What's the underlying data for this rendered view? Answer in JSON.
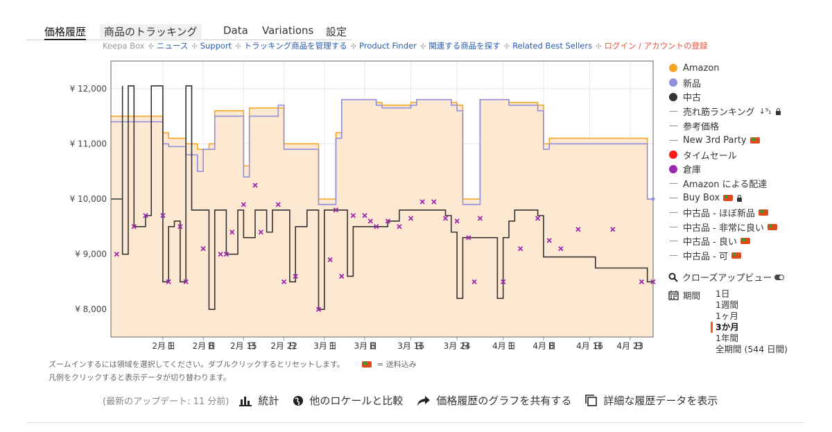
{
  "tabs": [
    "価格履歴",
    "商品のトラッキング",
    "Data",
    "Variations",
    "設定"
  ],
  "subnav": [
    {
      "label": "Keepa Box",
      "style": "grey"
    },
    {
      "label": "ニュース",
      "style": "lnk"
    },
    {
      "label": "Support",
      "style": "lnk"
    },
    {
      "label": "トラッキング商品を管理する",
      "style": "lnk"
    },
    {
      "label": "Product Finder",
      "style": "lnk"
    },
    {
      "label": "関連する商品を探す",
      "style": "lnk"
    },
    {
      "label": "Related Best Sellers",
      "style": "lnk"
    },
    {
      "label": "ログイン / アカウントの登録",
      "style": "red"
    }
  ],
  "subnav_sep": "✣",
  "legend": [
    {
      "label": "Amazon",
      "marker": "dot",
      "color": "#f5a623"
    },
    {
      "label": "新品",
      "marker": "dot",
      "color": "#8f8fdf"
    },
    {
      "label": "中古",
      "marker": "dot",
      "color": "#333333"
    },
    {
      "label": "売れ筋ランキング",
      "marker": "dash",
      "extra": "rank-lock"
    },
    {
      "label": "参考価格",
      "marker": "dash"
    },
    {
      "label": "New 3rd Party",
      "marker": "dash",
      "extra": "truck"
    },
    {
      "label": "タイムセール",
      "marker": "dot",
      "color": "#ff1a1a"
    },
    {
      "label": "倉庫",
      "marker": "dot",
      "color": "#9c27b0"
    },
    {
      "label": "Amazon による配達",
      "marker": "dash"
    },
    {
      "label": "Buy Box",
      "marker": "dash",
      "extra": "truck-lock"
    },
    {
      "label": "中古品 - ほぼ新品",
      "marker": "dash",
      "extra": "truck"
    },
    {
      "label": "中古品 - 非常に良い",
      "marker": "dash",
      "extra": "truck"
    },
    {
      "label": "中古品 - 良い",
      "marker": "dash",
      "extra": "truck"
    },
    {
      "label": "中古品 - 可",
      "marker": "dash",
      "extra": "truck"
    }
  ],
  "zoom_label": "クローズアップビュー",
  "period": {
    "label": "期間",
    "options": [
      "1日",
      "1週間",
      "1ヶ月",
      "3か月",
      "1年間",
      "全期間 (544 日間)"
    ],
    "selected": 3
  },
  "notes": {
    "line1": "ズームインするには領域を選択してください。ダブルクリックするとリセットします。",
    "shipping": "= 送料込み",
    "line2": "凡例をクリックすると表示データが切り替わります。"
  },
  "bottom": {
    "updated": "(最新のアップデート: 11 分前)",
    "stats": "統計",
    "compare": "他のロケールと比較",
    "share": "価格履歴のグラフを共有する",
    "detail": "詳細な履歴データを表示"
  },
  "chart_data": {
    "type": "line",
    "x_range": [
      "2025-01-23",
      "2025-04-27"
    ],
    "ylim": [
      7500,
      12500
    ],
    "y_ticks": [
      8000,
      9000,
      10000,
      11000,
      12000
    ],
    "y_tick_labels": [
      "¥ 8,000",
      "¥ 9,000",
      "¥ 10,000",
      "¥ 11,000",
      "¥ 12,000"
    ],
    "x_ticks": [
      {
        "label": "2月 1日",
        "date": "2025-02-01"
      },
      {
        "label": "2月 8日",
        "date": "2025-02-08"
      },
      {
        "label": "2月 15日",
        "date": "2025-02-15"
      },
      {
        "label": "2月 22日",
        "date": "2025-02-22"
      },
      {
        "label": "3月 1日",
        "date": "2025-03-01"
      },
      {
        "label": "3月 8日",
        "date": "2025-03-08"
      },
      {
        "label": "3月 16日",
        "date": "2025-03-16"
      },
      {
        "label": "3月 24日",
        "date": "2025-03-24"
      },
      {
        "label": "4月 1日",
        "date": "2025-04-01"
      },
      {
        "label": "4月 8日",
        "date": "2025-04-08"
      },
      {
        "label": "4月 16日",
        "date": "2025-04-16"
      },
      {
        "label": "4月 23日",
        "date": "2025-04-23"
      }
    ],
    "series": [
      {
        "name": "Amazon",
        "color": "#f5a623",
        "style": "step-area",
        "points": [
          [
            "2025-01-23",
            11500
          ],
          [
            "2025-01-31",
            11500
          ],
          [
            "2025-02-01",
            11200
          ],
          [
            "2025-02-02",
            11100
          ],
          [
            "2025-02-05",
            11000
          ],
          [
            "2025-02-07",
            10900
          ],
          [
            "2025-02-09",
            11000
          ],
          [
            "2025-02-10",
            11600
          ],
          [
            "2025-02-14",
            11600
          ],
          [
            "2025-02-15",
            10600
          ],
          [
            "2025-02-16",
            11650
          ],
          [
            "2025-02-22",
            11000
          ],
          [
            "2025-02-28",
            11000
          ],
          [
            "2025-02-28",
            10000
          ],
          [
            "2025-03-02",
            10000
          ],
          [
            "2025-03-03",
            11200
          ],
          [
            "2025-03-04",
            11800
          ],
          [
            "2025-03-09",
            11800
          ],
          [
            "2025-03-10",
            11750
          ],
          [
            "2025-03-11",
            11700
          ],
          [
            "2025-03-16",
            11750
          ],
          [
            "2025-03-17",
            11800
          ],
          [
            "2025-03-23",
            11750
          ],
          [
            "2025-03-24",
            11700
          ],
          [
            "2025-03-25",
            10000
          ],
          [
            "2025-03-27",
            10000
          ],
          [
            "2025-03-28",
            11800
          ],
          [
            "2025-04-01",
            11800
          ],
          [
            "2025-04-02",
            11750
          ],
          [
            "2025-04-07",
            11700
          ],
          [
            "2025-04-08",
            11000
          ],
          [
            "2025-04-09",
            11100
          ],
          [
            "2025-04-26",
            11100
          ],
          [
            "2025-04-26",
            10000
          ],
          [
            "2025-04-27",
            10000
          ]
        ]
      },
      {
        "name": "新品",
        "color": "#8f8fdf",
        "style": "step",
        "points": [
          [
            "2025-01-23",
            11400
          ],
          [
            "2025-01-31",
            11400
          ],
          [
            "2025-02-01",
            11000
          ],
          [
            "2025-02-02",
            10950
          ],
          [
            "2025-02-05",
            10800
          ],
          [
            "2025-02-07",
            10500
          ],
          [
            "2025-02-08",
            10900
          ],
          [
            "2025-02-10",
            11500
          ],
          [
            "2025-02-14",
            11500
          ],
          [
            "2025-02-15",
            10400
          ],
          [
            "2025-02-16",
            11500
          ],
          [
            "2025-02-21",
            11700
          ],
          [
            "2025-02-22",
            10900
          ],
          [
            "2025-02-28",
            10900
          ],
          [
            "2025-02-28",
            9900
          ],
          [
            "2025-03-02",
            9900
          ],
          [
            "2025-03-03",
            11100
          ],
          [
            "2025-03-04",
            11800
          ],
          [
            "2025-03-09",
            11800
          ],
          [
            "2025-03-10",
            11700
          ],
          [
            "2025-03-11",
            11650
          ],
          [
            "2025-03-16",
            11700
          ],
          [
            "2025-03-17",
            11800
          ],
          [
            "2025-03-23",
            11700
          ],
          [
            "2025-03-24",
            11600
          ],
          [
            "2025-03-25",
            9900
          ],
          [
            "2025-03-27",
            9900
          ],
          [
            "2025-03-28",
            11800
          ],
          [
            "2025-04-01",
            11800
          ],
          [
            "2025-04-02",
            11700
          ],
          [
            "2025-04-07",
            11600
          ],
          [
            "2025-04-08",
            10900
          ],
          [
            "2025-04-09",
            11000
          ],
          [
            "2025-04-26",
            11000
          ],
          [
            "2025-04-26",
            10000
          ],
          [
            "2025-04-27",
            10000
          ]
        ]
      },
      {
        "name": "中古",
        "color": "#333333",
        "style": "step",
        "points": [
          [
            "2025-01-23",
            10000
          ],
          [
            "2025-01-24",
            10000
          ],
          [
            "2025-01-25",
            12050
          ],
          [
            "2025-01-25",
            9000
          ],
          [
            "2025-01-26",
            12050
          ],
          [
            "2025-01-27",
            9500
          ],
          [
            "2025-01-28",
            9500
          ],
          [
            "2025-01-29",
            9700
          ],
          [
            "2025-01-30",
            12050
          ],
          [
            "2025-02-01",
            12050
          ],
          [
            "2025-02-01",
            8500
          ],
          [
            "2025-02-02",
            9500
          ],
          [
            "2025-02-03",
            9600
          ],
          [
            "2025-02-04",
            8500
          ],
          [
            "2025-02-05",
            12050
          ],
          [
            "2025-02-06",
            9800
          ],
          [
            "2025-02-08",
            9800
          ],
          [
            "2025-02-09",
            8000
          ],
          [
            "2025-02-10",
            9800
          ],
          [
            "2025-02-12",
            9000
          ],
          [
            "2025-02-14",
            9800
          ],
          [
            "2025-02-15",
            9300
          ],
          [
            "2025-02-17",
            9800
          ],
          [
            "2025-02-19",
            9400
          ],
          [
            "2025-02-20",
            9800
          ],
          [
            "2025-02-22",
            9800
          ],
          [
            "2025-02-23",
            8500
          ],
          [
            "2025-02-24",
            9500
          ],
          [
            "2025-02-26",
            9800
          ],
          [
            "2025-02-28",
            9800
          ],
          [
            "2025-02-28",
            8000
          ],
          [
            "2025-03-01",
            9800
          ],
          [
            "2025-03-04",
            9800
          ],
          [
            "2025-03-05",
            8600
          ],
          [
            "2025-03-06",
            9500
          ],
          [
            "2025-03-08",
            9500
          ],
          [
            "2025-03-10",
            9500
          ],
          [
            "2025-03-12",
            9600
          ],
          [
            "2025-03-14",
            9800
          ],
          [
            "2025-03-16",
            9800
          ],
          [
            "2025-03-20",
            9800
          ],
          [
            "2025-03-22",
            9700
          ],
          [
            "2025-03-23",
            9400
          ],
          [
            "2025-03-24",
            8200
          ],
          [
            "2025-03-25",
            9300
          ],
          [
            "2025-03-30",
            9300
          ],
          [
            "2025-03-31",
            8200
          ],
          [
            "2025-04-01",
            9300
          ],
          [
            "2025-04-02",
            9600
          ],
          [
            "2025-04-03",
            9800
          ],
          [
            "2025-04-06",
            9800
          ],
          [
            "2025-04-07",
            9700
          ],
          [
            "2025-04-08",
            8950
          ],
          [
            "2025-04-16",
            8950
          ],
          [
            "2025-04-17",
            8750
          ],
          [
            "2025-04-26",
            8750
          ],
          [
            "2025-04-26",
            8500
          ],
          [
            "2025-04-27",
            8500
          ]
        ]
      },
      {
        "name": "倉庫",
        "color": "#9c27b0",
        "style": "marker",
        "points": [
          [
            "2025-01-24",
            9000
          ],
          [
            "2025-01-27",
            9500
          ],
          [
            "2025-01-29",
            9700
          ],
          [
            "2025-02-01",
            9700
          ],
          [
            "2025-02-02",
            8500
          ],
          [
            "2025-02-04",
            9500
          ],
          [
            "2025-02-05",
            8500
          ],
          [
            "2025-02-08",
            9100
          ],
          [
            "2025-02-11",
            9000
          ],
          [
            "2025-02-12",
            9000
          ],
          [
            "2025-02-13",
            9400
          ],
          [
            "2025-02-15",
            9900
          ],
          [
            "2025-02-17",
            10250
          ],
          [
            "2025-02-18",
            9400
          ],
          [
            "2025-02-21",
            9900
          ],
          [
            "2025-02-22",
            8500
          ],
          [
            "2025-02-24",
            8600
          ],
          [
            "2025-02-28",
            8000
          ],
          [
            "2025-03-02",
            8900
          ],
          [
            "2025-03-03",
            9800
          ],
          [
            "2025-03-04",
            8600
          ],
          [
            "2025-03-06",
            9700
          ],
          [
            "2025-03-08",
            9700
          ],
          [
            "2025-03-09",
            9600
          ],
          [
            "2025-03-10",
            9500
          ],
          [
            "2025-03-12",
            9600
          ],
          [
            "2025-03-14",
            9500
          ],
          [
            "2025-03-16",
            9650
          ],
          [
            "2025-03-18",
            9950
          ],
          [
            "2025-03-20",
            9950
          ],
          [
            "2025-03-22",
            9650
          ],
          [
            "2025-03-24",
            9600
          ],
          [
            "2025-03-26",
            9300
          ],
          [
            "2025-03-27",
            8500
          ],
          [
            "2025-03-28",
            9650
          ],
          [
            "2025-04-01",
            8500
          ],
          [
            "2025-04-04",
            9100
          ],
          [
            "2025-04-07",
            9650
          ],
          [
            "2025-04-09",
            9250
          ],
          [
            "2025-04-11",
            9100
          ],
          [
            "2025-04-14",
            9450
          ],
          [
            "2025-04-20",
            9450
          ],
          [
            "2025-04-25",
            8500
          ],
          [
            "2025-04-27",
            8500
          ]
        ]
      }
    ]
  }
}
